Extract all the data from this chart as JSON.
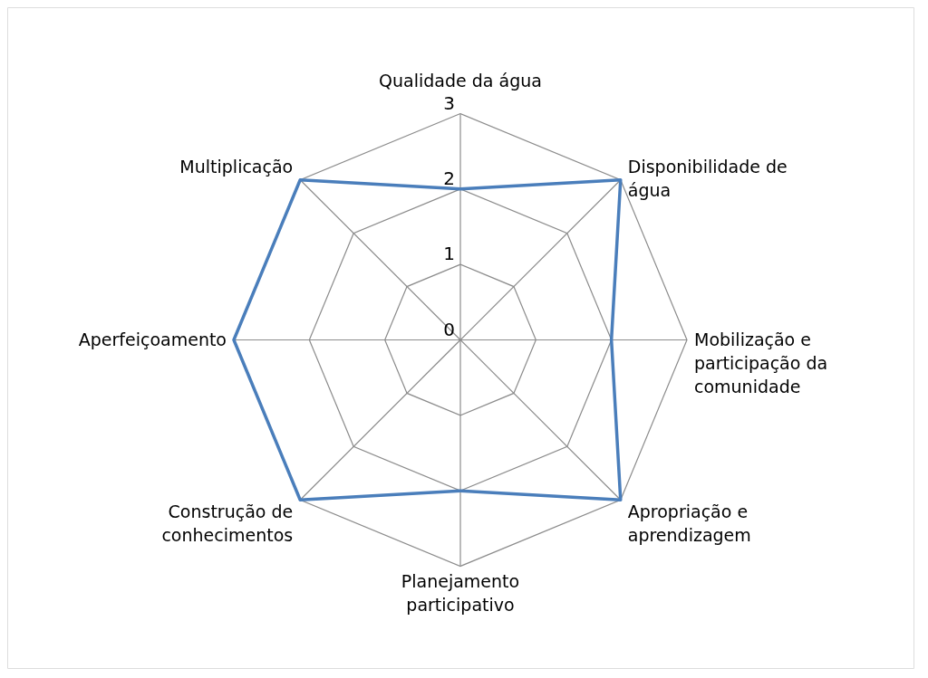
{
  "chart_data": {
    "type": "radar",
    "categories": [
      "Qualidade da água",
      "Disponibilidade de água",
      "Mobilização e participação da comunidade",
      "Apropriação e aprendizagem",
      "Planejamento participativo",
      "Construção de conhecimentos",
      "Aperfeiçoamento",
      "Multiplicação"
    ],
    "series": [
      {
        "color": "#4a7ebb",
        "values": [
          2,
          3,
          2,
          3,
          2,
          3,
          3,
          3
        ]
      }
    ],
    "ylim": [
      0,
      3
    ],
    "yticks": [
      0,
      1,
      2,
      3
    ],
    "grid": true
  }
}
